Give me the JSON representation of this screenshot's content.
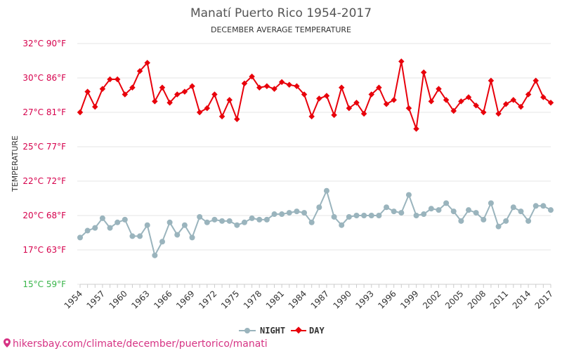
{
  "colors": {
    "night": "#9ab4bd",
    "day": "#e8000b",
    "tick_hot": "#d6004c",
    "tick_cold": "#39b54a",
    "watermark": "#d63384"
  },
  "watermark": {
    "icon": "pin-icon",
    "text": "hikersbay.com/climate/december/puertorico/manati"
  },
  "chart_data": {
    "type": "line",
    "title": "Manatí Puerto Rico 1954-2017",
    "subtitle": "DECEMBER AVERAGE TEMPERATURE",
    "xlabel": "",
    "ylabel": "TEMPERATURE",
    "ylim": [
      15,
      32.5
    ],
    "yticks": [
      {
        "value": 15,
        "label": "15°C 59°F"
      },
      {
        "value": 17.5,
        "label": "17°C 63°F"
      },
      {
        "value": 20,
        "label": "20°C 68°F"
      },
      {
        "value": 22.5,
        "label": "22°C 72°F"
      },
      {
        "value": 25,
        "label": "25°C 77°F"
      },
      {
        "value": 27.5,
        "label": "27°C 81°F"
      },
      {
        "value": 30,
        "label": "30°C 86°F"
      },
      {
        "value": 32.5,
        "label": "32°C 90°F"
      }
    ],
    "xticks": [
      "1954",
      "1957",
      "1960",
      "1963",
      "1966",
      "1969",
      "1972",
      "1975",
      "1978",
      "1981",
      "1984",
      "1987",
      "1990",
      "1993",
      "1996",
      "1999",
      "2002",
      "2005",
      "2008",
      "2011",
      "2014",
      "2017"
    ],
    "legend_position": "bottom-center",
    "grid": true,
    "x": [
      1954,
      1955,
      1956,
      1957,
      1958,
      1959,
      1960,
      1961,
      1962,
      1963,
      1964,
      1965,
      1966,
      1967,
      1968,
      1969,
      1970,
      1971,
      1972,
      1973,
      1974,
      1975,
      1976,
      1977,
      1978,
      1979,
      1980,
      1981,
      1982,
      1983,
      1984,
      1985,
      1986,
      1987,
      1988,
      1989,
      1990,
      1991,
      1992,
      1993,
      1994,
      1995,
      1996,
      1997,
      1998,
      1999,
      2000,
      2001,
      2002,
      2003,
      2004,
      2005,
      2006,
      2007,
      2008,
      2009,
      2010,
      2011,
      2012,
      2013,
      2014,
      2015,
      2016,
      2017
    ],
    "series": [
      {
        "name": "NIGHT",
        "values": [
          18.4,
          18.9,
          19.1,
          19.8,
          19.1,
          19.5,
          19.7,
          18.5,
          18.5,
          19.3,
          17.1,
          18.1,
          19.5,
          18.6,
          19.3,
          18.4,
          19.9,
          19.5,
          19.7,
          19.6,
          19.6,
          19.3,
          19.5,
          19.8,
          19.7,
          19.7,
          20.1,
          20.1,
          20.2,
          20.3,
          20.2,
          19.5,
          20.6,
          21.8,
          19.9,
          19.3,
          19.9,
          20.0,
          20.0,
          20.0,
          20.0,
          20.6,
          20.3,
          20.2,
          21.5,
          20.0,
          20.1,
          20.5,
          20.4,
          20.9,
          20.3,
          19.6,
          20.4,
          20.2,
          19.7,
          20.9,
          19.2,
          19.6,
          20.6,
          20.3,
          19.6,
          20.7,
          20.7,
          20.4
        ]
      },
      {
        "name": "DAY",
        "values": [
          27.5,
          29.0,
          27.9,
          29.2,
          29.9,
          29.9,
          28.8,
          29.3,
          30.5,
          31.1,
          28.3,
          29.3,
          28.2,
          28.8,
          29.0,
          29.4,
          27.5,
          27.8,
          28.8,
          27.2,
          28.4,
          27.0,
          29.6,
          30.1,
          29.3,
          29.4,
          29.2,
          29.7,
          29.5,
          29.4,
          28.8,
          27.2,
          28.5,
          28.7,
          27.3,
          29.3,
          27.8,
          28.2,
          27.4,
          28.8,
          29.3,
          28.1,
          28.4,
          31.2,
          27.8,
          26.3,
          30.4,
          28.3,
          29.2,
          28.4,
          27.6,
          28.3,
          28.6,
          28.0,
          27.5,
          29.8,
          27.4,
          28.1,
          28.4,
          27.9,
          28.8,
          29.8,
          28.6,
          28.2
        ]
      }
    ]
  }
}
